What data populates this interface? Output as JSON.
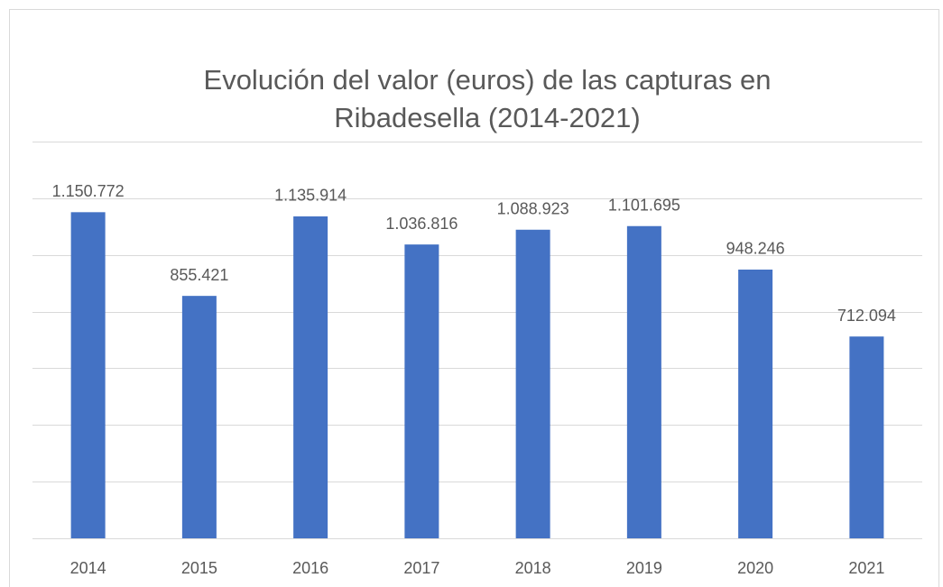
{
  "chart_data": {
    "type": "bar",
    "title": "Evolución del valor (euros) de las capturas en\nRibadesella (2014-2021)",
    "categories": [
      "2014",
      "2015",
      "2016",
      "2017",
      "2018",
      "2019",
      "2020",
      "2021"
    ],
    "values": [
      1150772,
      855421,
      1135914,
      1036816,
      1088923,
      1101695,
      948246,
      712094
    ],
    "value_labels": [
      "1.150.772",
      "855.421",
      "1.135.914",
      "1.036.816",
      "1.088.923",
      "1.101.695",
      "948.246",
      "712.094"
    ],
    "color": "#4472c4",
    "ylim": [
      0,
      1400000
    ],
    "yticks": [
      0,
      200000,
      400000,
      600000,
      800000,
      1000000,
      1200000,
      1400000
    ],
    "grid": true
  }
}
